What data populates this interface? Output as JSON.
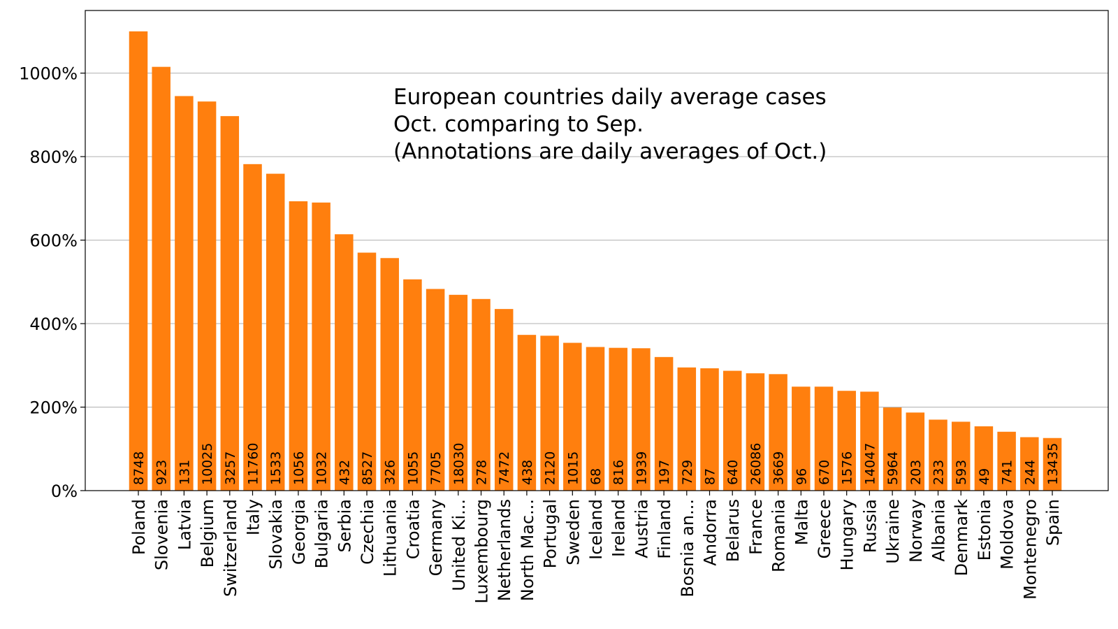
{
  "chart_data": {
    "type": "bar",
    "title_lines": [
      "European countries daily average cases",
      "Oct. comparing to Sep.",
      "(Annotations are daily averages of Oct.)"
    ],
    "xlabel": "",
    "ylabel": "",
    "ylim": [
      0,
      1150
    ],
    "y_ticks": [
      0,
      200,
      400,
      600,
      800,
      1000
    ],
    "y_tick_labels": [
      "0%",
      "200%",
      "400%",
      "600%",
      "800%",
      "1000%"
    ],
    "grid": "y",
    "bar_color": "#ff7f0e",
    "categories": [
      "Poland",
      "Slovenia",
      "Latvia",
      "Belgium",
      "Switzerland",
      "Italy",
      "Slovakia",
      "Georgia",
      "Bulgaria",
      "Serbia",
      "Czechia",
      "Lithuania",
      "Croatia",
      "Germany",
      "United Ki...",
      "Luxembourg",
      "Netherlands",
      "North Mac...",
      "Portugal",
      "Sweden",
      "Iceland",
      "Ireland",
      "Austria",
      "Finland",
      "Bosnia an...",
      "Andorra",
      "Belarus",
      "France",
      "Romania",
      "Malta",
      "Greece",
      "Hungary",
      "Russia",
      "Ukraine",
      "Norway",
      "Albania",
      "Denmark",
      "Estonia",
      "Moldova",
      "Montenegro",
      "Spain"
    ],
    "values": [
      1100,
      1015,
      945,
      932,
      897,
      782,
      759,
      693,
      690,
      614,
      570,
      557,
      506,
      483,
      469,
      459,
      435,
      373,
      371,
      354,
      344,
      342,
      341,
      320,
      295,
      293,
      287,
      281,
      279,
      249,
      249,
      239,
      237,
      199,
      187,
      170,
      165,
      154,
      141,
      128,
      126
    ],
    "annotations": [
      "8748",
      "923",
      "131",
      "10025",
      "3257",
      "11760",
      "1533",
      "1056",
      "1032",
      "432",
      "8527",
      "326",
      "1055",
      "7705",
      "18030",
      "278",
      "7472",
      "438",
      "2120",
      "1015",
      "68",
      "816",
      "1939",
      "197",
      "729",
      "87",
      "640",
      "26086",
      "3669",
      "96",
      "670",
      "1576",
      "14047",
      "5964",
      "203",
      "233",
      "593",
      "49",
      "741",
      "244",
      "13435"
    ]
  }
}
